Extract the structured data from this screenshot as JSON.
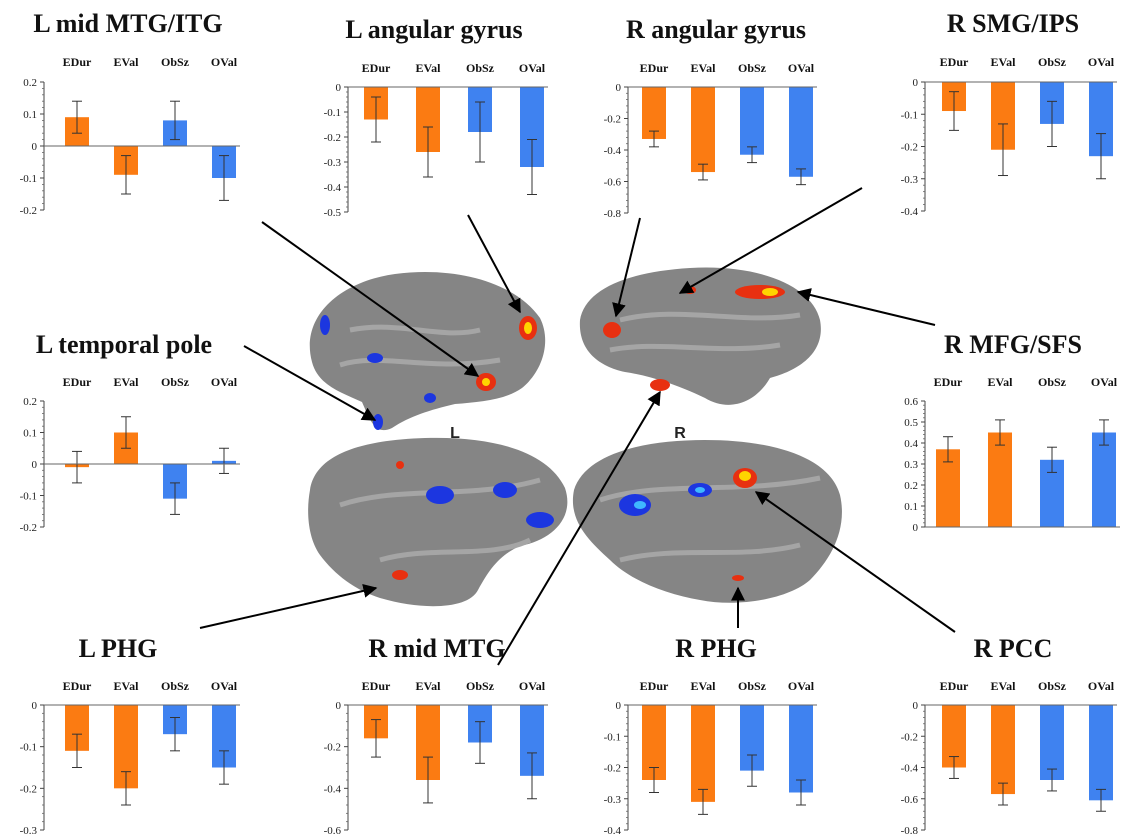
{
  "colors": {
    "orange": "#fb7b12",
    "blue": "#3f82f0",
    "brain": "#858585",
    "brain_light": "#a5a5a5"
  },
  "brain_labels": {
    "left": "L",
    "right": "R"
  },
  "chart_data": [
    {
      "type": "bar",
      "title": "L mid MTG/ITG",
      "categories": [
        "EDur",
        "EVal",
        "ObSz",
        "OVal"
      ],
      "values": [
        0.09,
        -0.09,
        0.08,
        -0.1
      ],
      "errors": [
        0.05,
        0.06,
        0.06,
        0.07
      ],
      "ylim": [
        -0.2,
        0.2
      ],
      "ticks": [
        "0.2",
        "0.1",
        "0",
        "-0.1",
        "-0.2"
      ]
    },
    {
      "type": "bar",
      "title": "L angular gyrus",
      "categories": [
        "EDur",
        "EVal",
        "ObSz",
        "OVal"
      ],
      "values": [
        -0.13,
        -0.26,
        -0.18,
        -0.32
      ],
      "errors": [
        0.09,
        0.1,
        0.12,
        0.11
      ],
      "ylim": [
        -0.5,
        0
      ],
      "ticks": [
        "0",
        "-0.1",
        "-0.2",
        "-0.3",
        "-0.4",
        "-0.5"
      ]
    },
    {
      "type": "bar",
      "title": "R angular gyrus",
      "categories": [
        "EDur",
        "EVal",
        "ObSz",
        "OVal"
      ],
      "values": [
        -0.33,
        -0.54,
        -0.43,
        -0.57
      ],
      "errors": [
        0.05,
        0.05,
        0.05,
        0.05
      ],
      "ylim": [
        -0.8,
        0
      ],
      "ticks": [
        "0",
        "-0.2",
        "-0.4",
        "-0.6",
        "-0.8"
      ]
    },
    {
      "type": "bar",
      "title": "R SMG/IPS",
      "categories": [
        "EDur",
        "EVal",
        "ObSz",
        "OVal"
      ],
      "values": [
        -0.09,
        -0.21,
        -0.13,
        -0.23
      ],
      "errors": [
        0.06,
        0.08,
        0.07,
        0.07
      ],
      "ylim": [
        -0.4,
        0
      ],
      "ticks": [
        "0",
        "-0.1",
        "-0.2",
        "-0.3",
        "-0.4"
      ]
    },
    {
      "type": "bar",
      "title": "L temporal pole",
      "categories": [
        "EDur",
        "EVal",
        "ObSz",
        "OVal"
      ],
      "values": [
        -0.01,
        0.1,
        -0.11,
        0.01
      ],
      "errors": [
        0.05,
        0.05,
        0.05,
        0.04
      ],
      "ylim": [
        -0.2,
        0.2
      ],
      "ticks": [
        "0.2",
        "0.1",
        "0",
        "-0.1",
        "-0.2"
      ]
    },
    {
      "type": "bar",
      "title": "R MFG/SFS",
      "categories": [
        "EDur",
        "EVal",
        "ObSz",
        "OVal"
      ],
      "values": [
        0.37,
        0.45,
        0.32,
        0.45
      ],
      "errors": [
        0.06,
        0.06,
        0.06,
        0.06
      ],
      "ylim": [
        0,
        0.6
      ],
      "ticks": [
        "0.6",
        "0.5",
        "0.4",
        "0.3",
        "0.2",
        "0.1",
        "0"
      ]
    },
    {
      "type": "bar",
      "title": "L PHG",
      "categories": [
        "EDur",
        "EVal",
        "ObSz",
        "OVal"
      ],
      "values": [
        -0.11,
        -0.2,
        -0.07,
        -0.15
      ],
      "errors": [
        0.04,
        0.04,
        0.04,
        0.04
      ],
      "ylim": [
        -0.3,
        0
      ],
      "ticks": [
        "0",
        "-0.1",
        "-0.2",
        "-0.3"
      ]
    },
    {
      "type": "bar",
      "title": "R mid MTG",
      "categories": [
        "EDur",
        "EVal",
        "ObSz",
        "OVal"
      ],
      "values": [
        -0.16,
        -0.36,
        -0.18,
        -0.34
      ],
      "errors": [
        0.09,
        0.11,
        0.1,
        0.11
      ],
      "ylim": [
        -0.6,
        0
      ],
      "ticks": [
        "0",
        "-0.2",
        "-0.4",
        "-0.6"
      ]
    },
    {
      "type": "bar",
      "title": "R PHG",
      "categories": [
        "EDur",
        "EVal",
        "ObSz",
        "OVal"
      ],
      "values": [
        -0.24,
        -0.31,
        -0.21,
        -0.28
      ],
      "errors": [
        0.04,
        0.04,
        0.05,
        0.04
      ],
      "ylim": [
        -0.4,
        0
      ],
      "ticks": [
        "0",
        "-0.1",
        "-0.2",
        "-0.3",
        "-0.4"
      ]
    },
    {
      "type": "bar",
      "title": "R PCC",
      "categories": [
        "EDur",
        "EVal",
        "ObSz",
        "OVal"
      ],
      "values": [
        -0.4,
        -0.57,
        -0.48,
        -0.61
      ],
      "errors": [
        0.07,
        0.07,
        0.07,
        0.07
      ],
      "ylim": [
        -0.8,
        0
      ],
      "ticks": [
        "0",
        "-0.2",
        "-0.4",
        "-0.6",
        "-0.8"
      ]
    }
  ]
}
